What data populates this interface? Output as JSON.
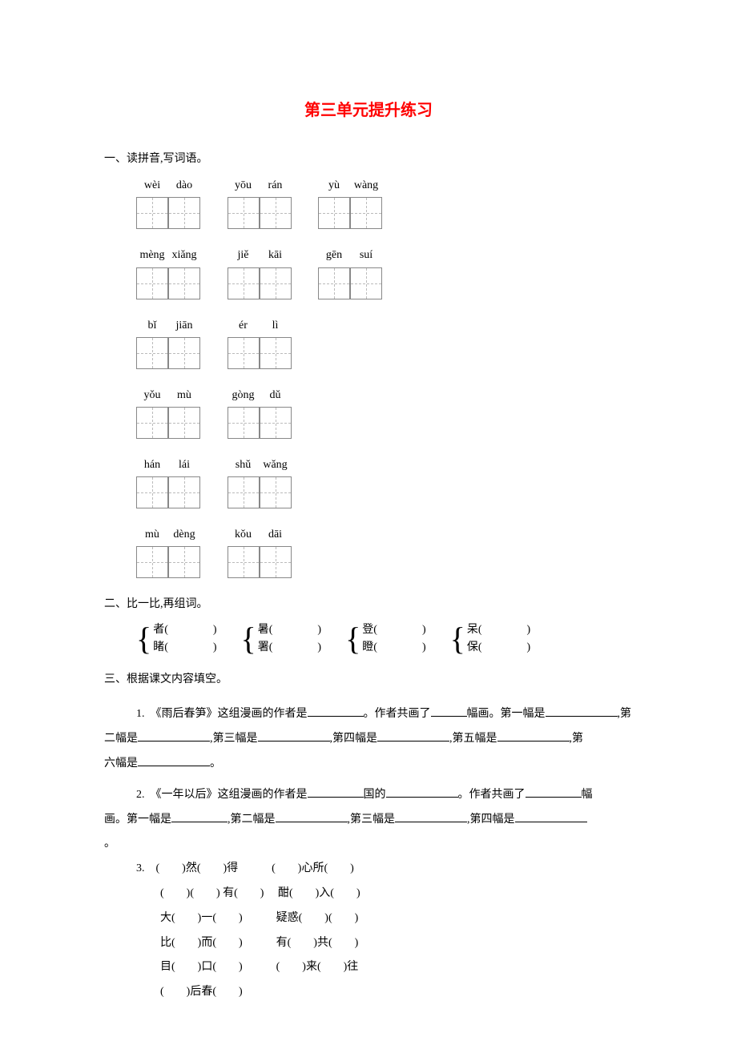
{
  "title": "第三单元提升练习",
  "section1": {
    "heading": "一、读拼音,写词语。",
    "rows": [
      [
        {
          "pinyin": [
            "wèi",
            "dào"
          ]
        },
        {
          "pinyin": [
            "yōu",
            "rán"
          ]
        },
        {
          "pinyin": [
            "yù",
            "wàng"
          ]
        }
      ],
      [
        {
          "pinyin": [
            "mèng",
            "xiǎng"
          ]
        },
        {
          "pinyin": [
            "jiě",
            "kāi"
          ]
        },
        {
          "pinyin": [
            "gēn",
            "suí"
          ]
        }
      ],
      [
        {
          "pinyin": [
            "bǐ",
            "jiān"
          ]
        },
        {
          "pinyin": [
            "ér",
            "lì"
          ]
        }
      ],
      [
        {
          "pinyin": [
            "yǒu",
            "mù"
          ]
        },
        {
          "pinyin": [
            "gòng",
            "dǔ"
          ]
        }
      ],
      [
        {
          "pinyin": [
            "hán",
            "lái"
          ]
        },
        {
          "pinyin": [
            "shǔ",
            "wǎng"
          ]
        }
      ],
      [
        {
          "pinyin": [
            "mù",
            "dèng"
          ]
        },
        {
          "pinyin": [
            "kǒu",
            "dāi"
          ]
        }
      ]
    ]
  },
  "section2": {
    "heading": "二、比一比,再组词。",
    "groups": [
      {
        "top": "者(",
        "bottom": "睹("
      },
      {
        "top": "暑(",
        "bottom": "署("
      },
      {
        "top": "登(",
        "bottom": "瞪("
      },
      {
        "top": "呆(",
        "bottom": "保("
      }
    ],
    "close": ")"
  },
  "section3": {
    "heading": "三、根据课文内容填空。",
    "q1_prefix": "1.　《雨后春笋》这组漫画的作者是",
    "q1_p2": "。作者共画了",
    "q1_p3": "幅画。第一幅是",
    "q1_p4": ",第",
    "q1_line2_a": "二幅是",
    "q1_line2_b": ",第三幅是",
    "q1_line2_c": ",第四幅是",
    "q1_line2_d": ",第五幅是",
    "q1_line2_e": ",第",
    "q1_line3_a": "六幅是",
    "q1_line3_b": "。",
    "q2_prefix": "2.　《一年以后》这组漫画的作者是",
    "q2_p2": "国的",
    "q2_p3": "。作者共画了",
    "q2_p4": "幅",
    "q2_line2_a": "画。第一幅是",
    "q2_line2_b": ",第二幅是",
    "q2_line2_c": ",第三幅是",
    "q2_line2_d": ",第四幅是",
    "q3_label": "3.",
    "q3_rows": [
      "(　　)然(　　)得　　　(　　)心所(　　)",
      "(　　)(　　) 有(　　)　 酣(　　)入(　　)",
      "大(　　)一(　　)　　　疑惑(　　)(　　)",
      "比(　　)而(　　)　　　有(　　)共(　　)",
      "目(　　)口(　　)　　　(　　)来(　　)往",
      "(　　)后春(　　)"
    ]
  }
}
